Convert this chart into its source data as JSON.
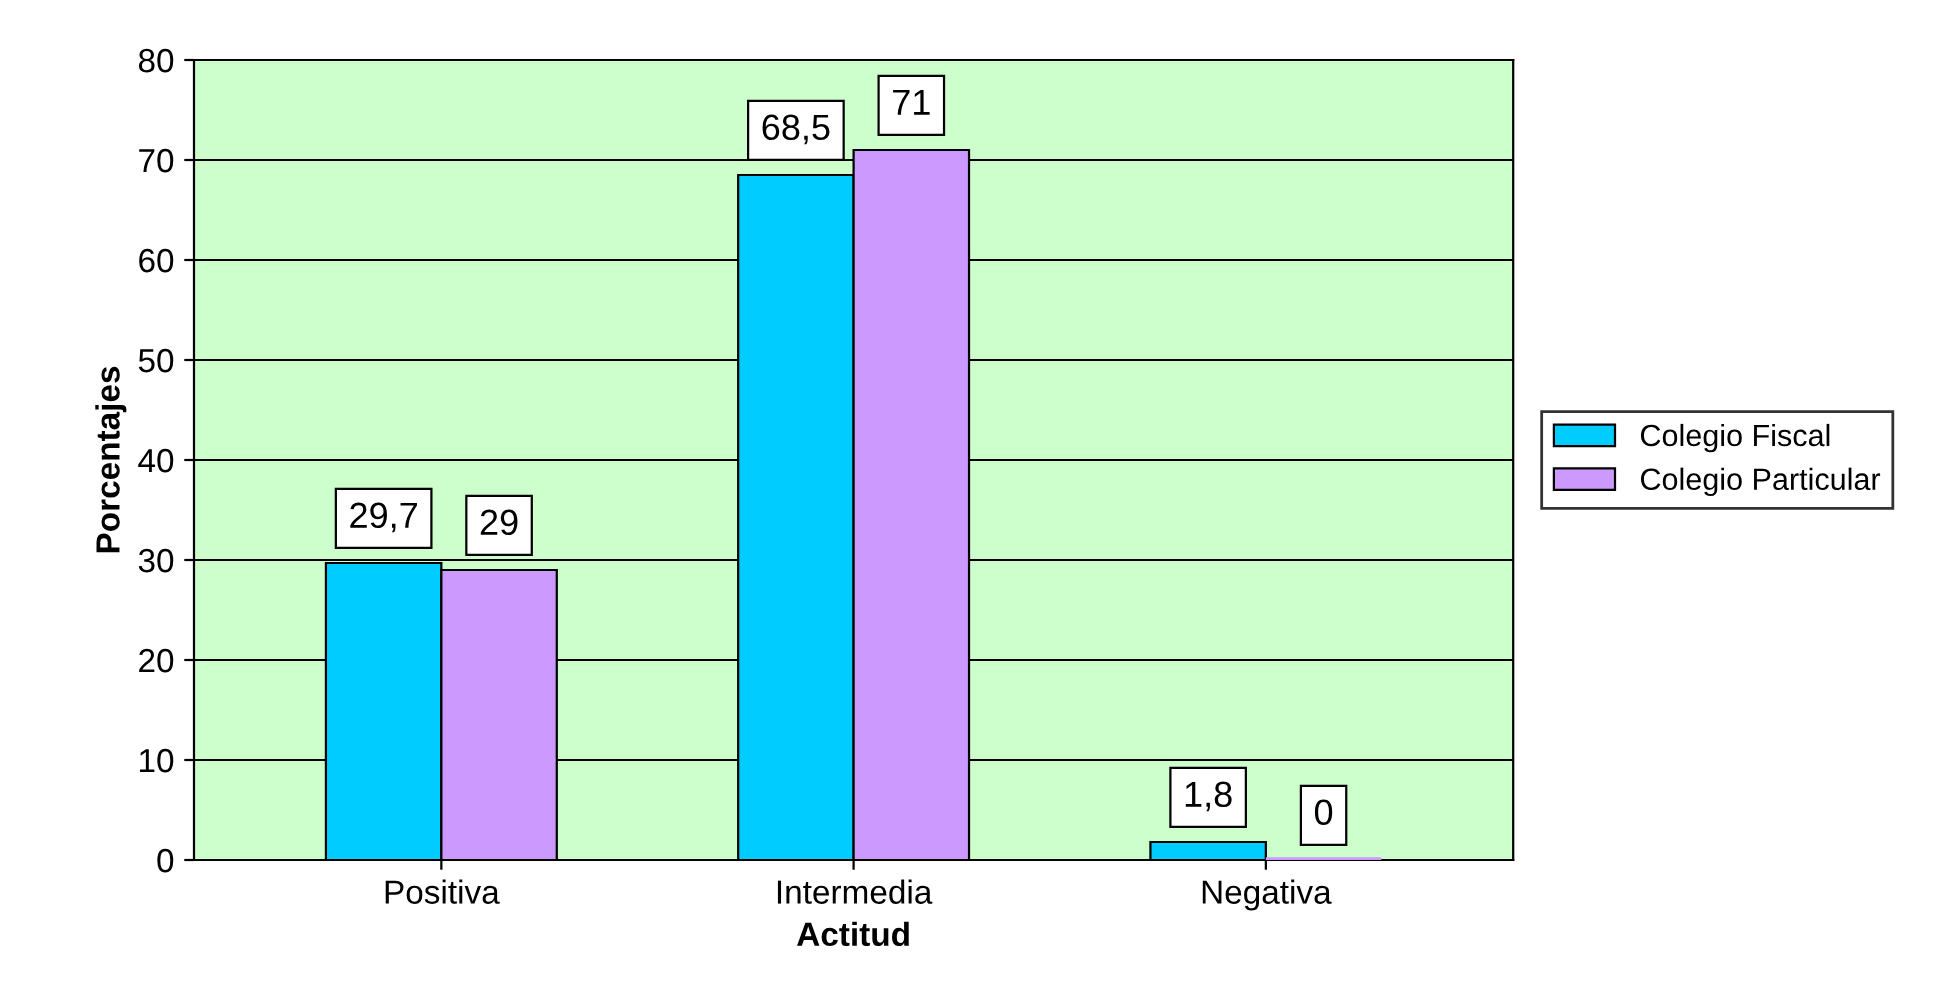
{
  "chart_data": {
    "type": "bar",
    "xlabel": "Actitud",
    "ylabel": "Porcentajes",
    "categories": [
      "Positiva",
      "Intermedia",
      "Negativa"
    ],
    "series": [
      {
        "name": "Colegio Fiscal",
        "color": "#00ccff",
        "values": [
          29.7,
          68.5,
          1.8
        ],
        "value_labels": [
          "29,7",
          "68,5",
          "1,8"
        ]
      },
      {
        "name": "Colegio Particular",
        "color": "#cc99ff",
        "values": [
          29,
          71,
          0
        ],
        "value_labels": [
          "29",
          "71",
          "0"
        ]
      }
    ],
    "ylim": [
      0,
      80
    ],
    "yticks": [
      0,
      10,
      20,
      30,
      40,
      50,
      60,
      70,
      80
    ],
    "grid": "y",
    "legend": "right"
  }
}
